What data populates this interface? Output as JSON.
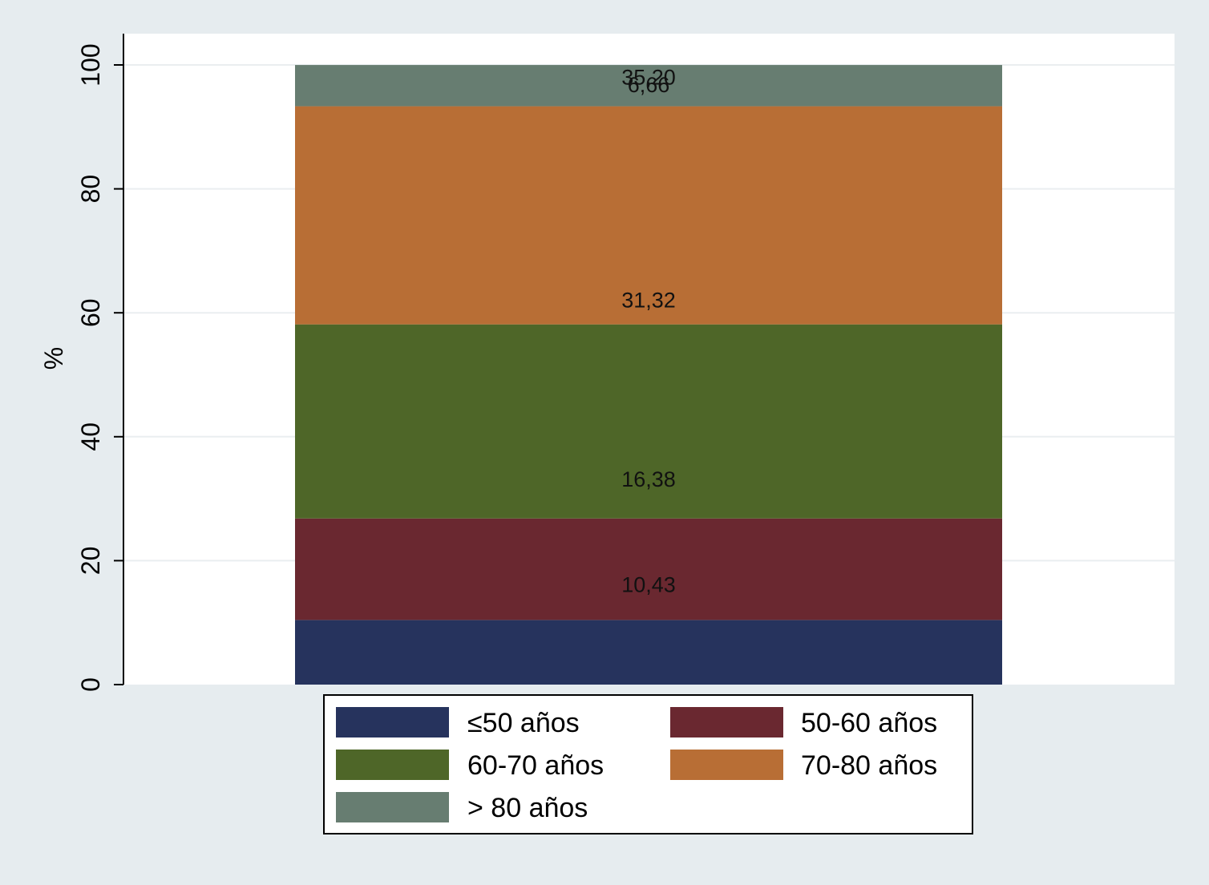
{
  "chart_data": {
    "type": "bar",
    "stacked": true,
    "ylabel": "%",
    "xlabel": "",
    "ylim": [
      0,
      100
    ],
    "yticks": [
      "0",
      "20",
      "40",
      "60",
      "80",
      "100"
    ],
    "grid": true,
    "legend_position": "bottom",
    "series": [
      {
        "name": "≤50 años",
        "value": 10.43,
        "label": "10,43",
        "color": "#26335d"
      },
      {
        "name": "50-60 años",
        "value": 16.38,
        "label": "16,38",
        "color": "#6a2830"
      },
      {
        "name": "60-70 años",
        "value": 31.32,
        "label": "31,32",
        "color": "#4e6628"
      },
      {
        "name": "70-80 años",
        "value": 35.2,
        "label": "35,20",
        "color": "#b86e35"
      },
      {
        "name": "> 80 años",
        "value": 6.66,
        "label": "6,66",
        "color": "#677d71"
      }
    ]
  }
}
